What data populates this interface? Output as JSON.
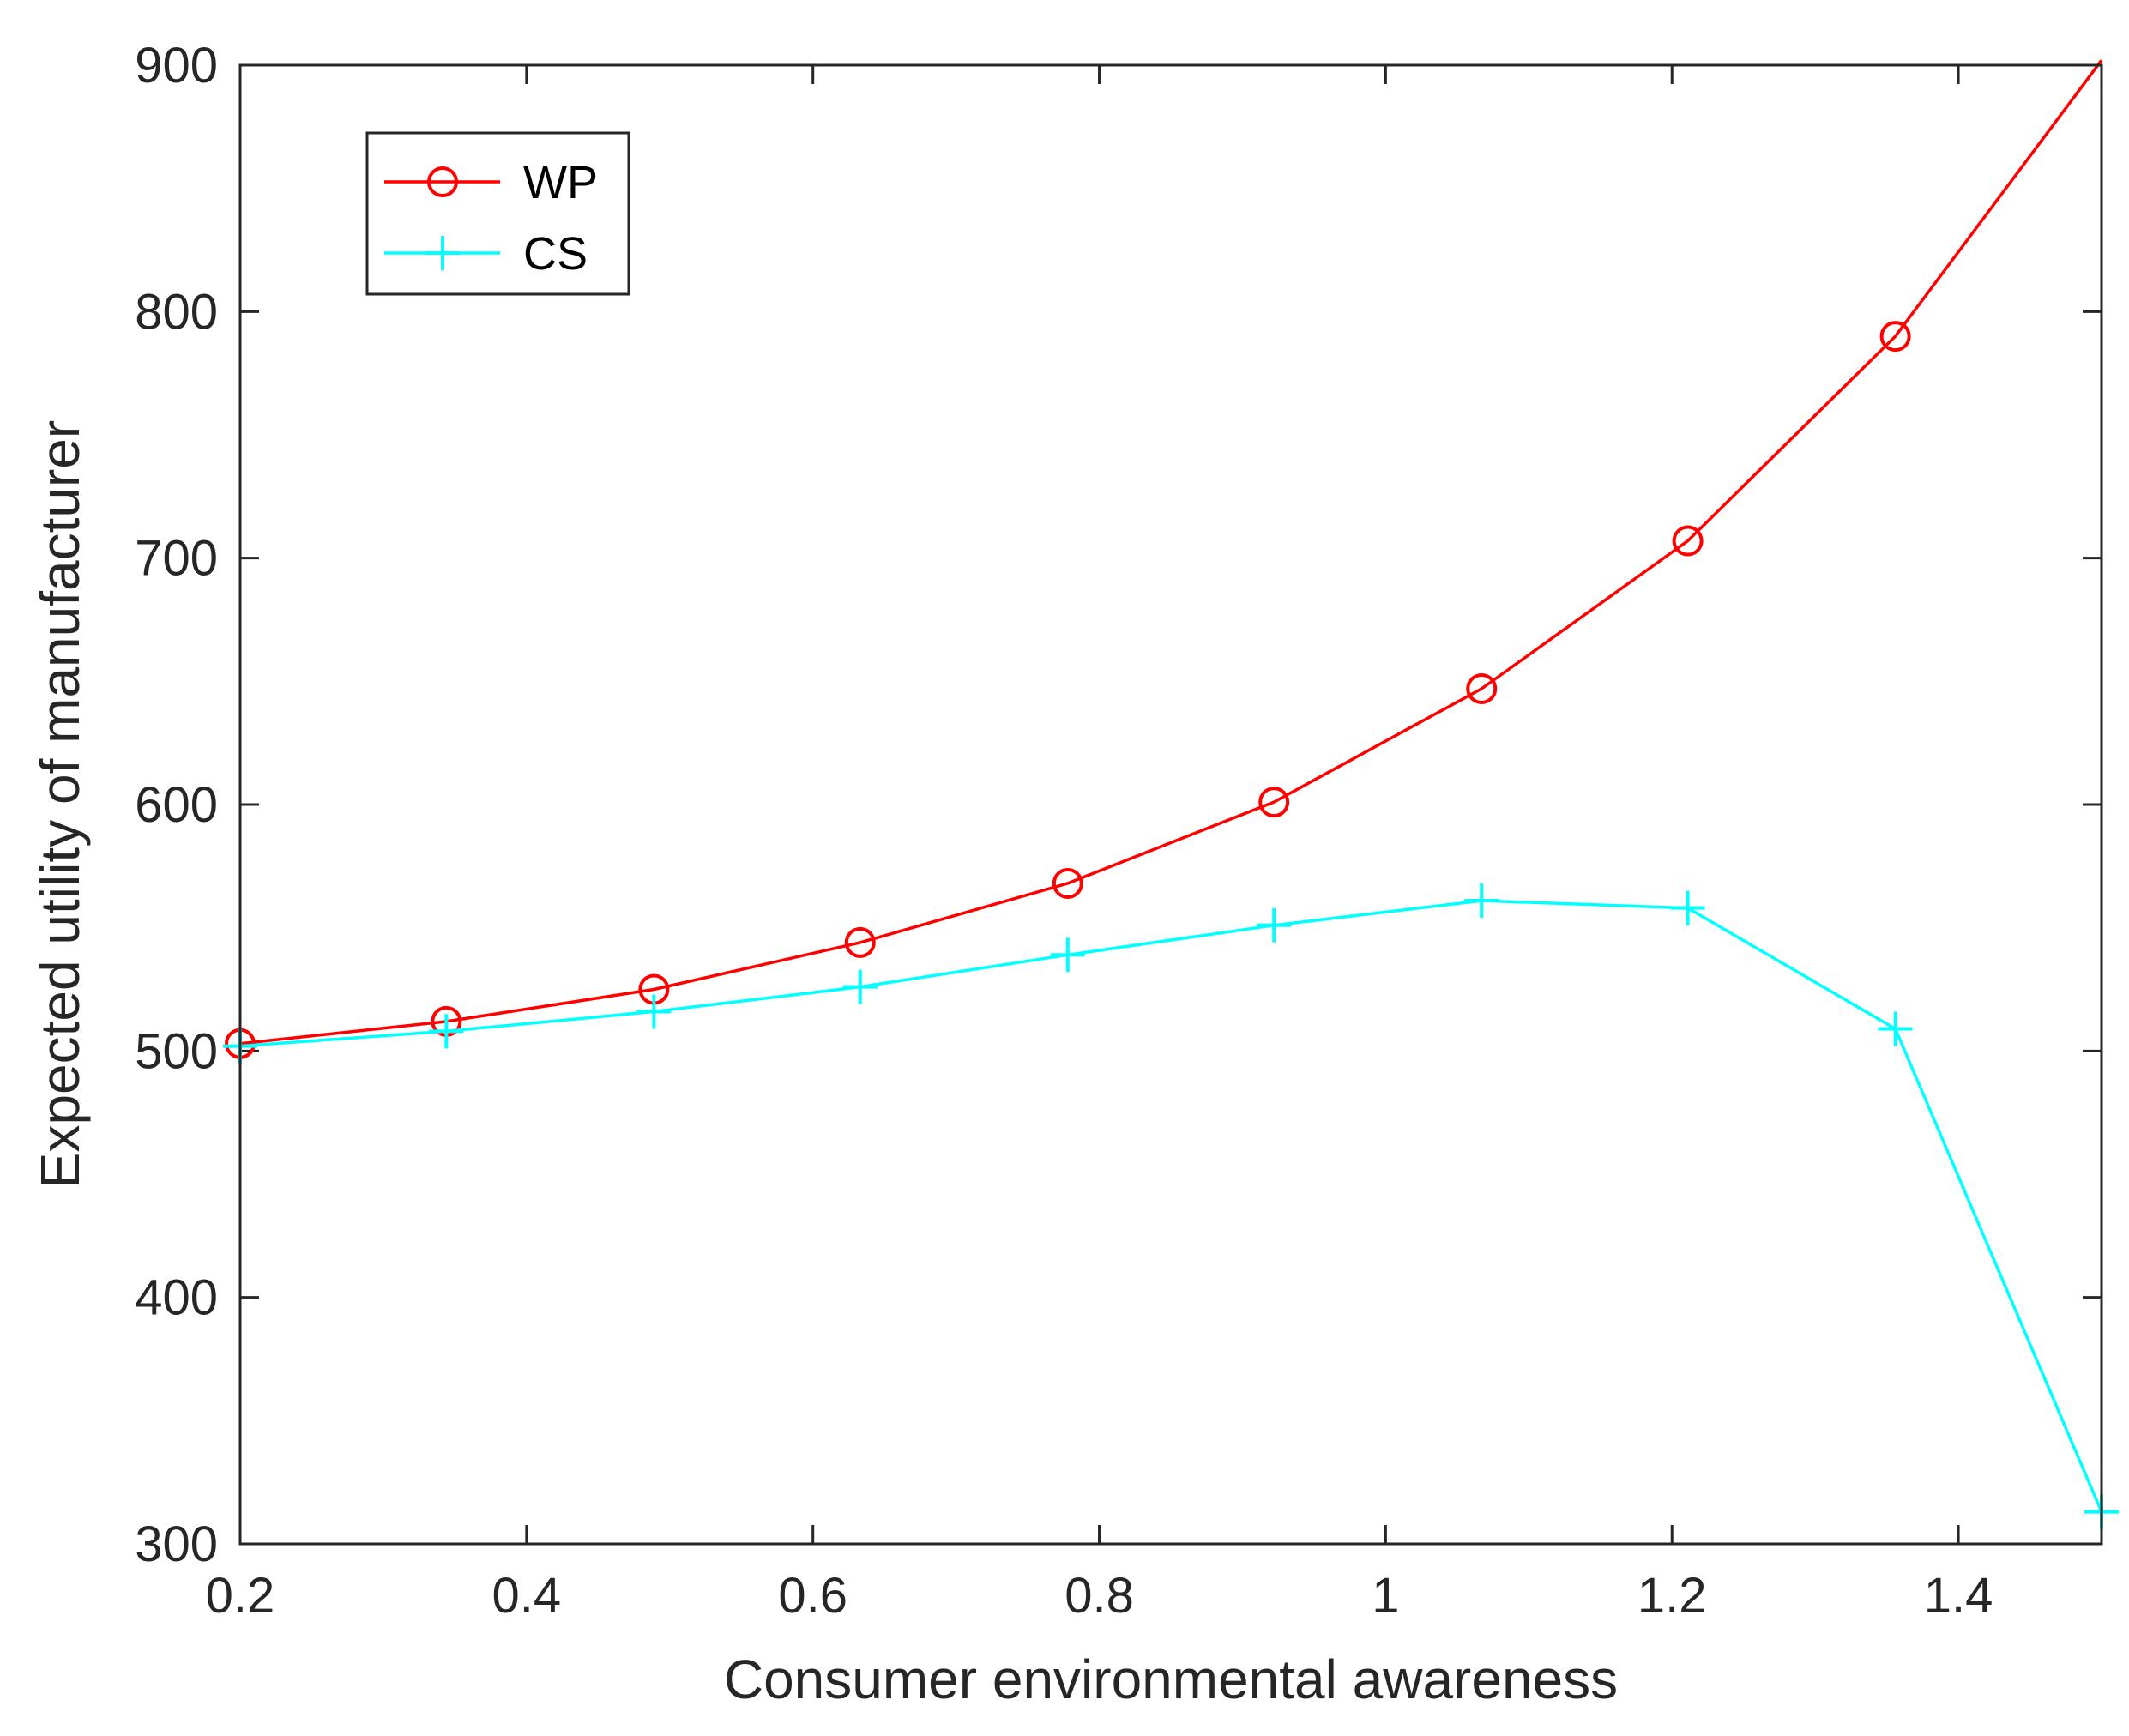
{
  "chart_data": {
    "type": "line",
    "title": "",
    "xlabel": "Consumer environmental awareness",
    "ylabel": "Expected utility of manufacturer",
    "xlim": [
      0.2,
      1.5
    ],
    "ylim": [
      300,
      900
    ],
    "xticks": [
      0.2,
      0.4,
      0.6,
      0.8,
      1,
      1.2,
      1.4
    ],
    "xtick_labels": [
      "0.2",
      "0.4",
      "0.6",
      "0.8",
      "1",
      "1.2",
      "1.4"
    ],
    "yticks": [
      300,
      400,
      500,
      600,
      700,
      800,
      900
    ],
    "ytick_labels": [
      "300",
      "400",
      "500",
      "600",
      "700",
      "800",
      "900"
    ],
    "legend_position": "top-left",
    "series": [
      {
        "name": "WP",
        "color": "#ff0000",
        "marker": "circle",
        "x": [
          0.2,
          0.344,
          0.489,
          0.633,
          0.778,
          0.922,
          1.067,
          1.211,
          1.356,
          1.5
        ],
        "y": [
          503,
          512,
          525,
          544,
          568,
          601,
          647,
          707,
          790,
          902
        ],
        "marker_indices": [
          0,
          1,
          2,
          3,
          4,
          5,
          6,
          7,
          8
        ]
      },
      {
        "name": "CS",
        "color": "#00ffff",
        "marker": "plus",
        "x": [
          0.2,
          0.344,
          0.489,
          0.633,
          0.778,
          0.922,
          1.067,
          1.211,
          1.356,
          1.5
        ],
        "y": [
          502,
          508,
          516,
          526,
          539,
          551,
          561,
          558,
          509,
          313
        ],
        "marker_indices": [
          0,
          1,
          2,
          3,
          4,
          5,
          6,
          7,
          8,
          9
        ]
      }
    ]
  }
}
